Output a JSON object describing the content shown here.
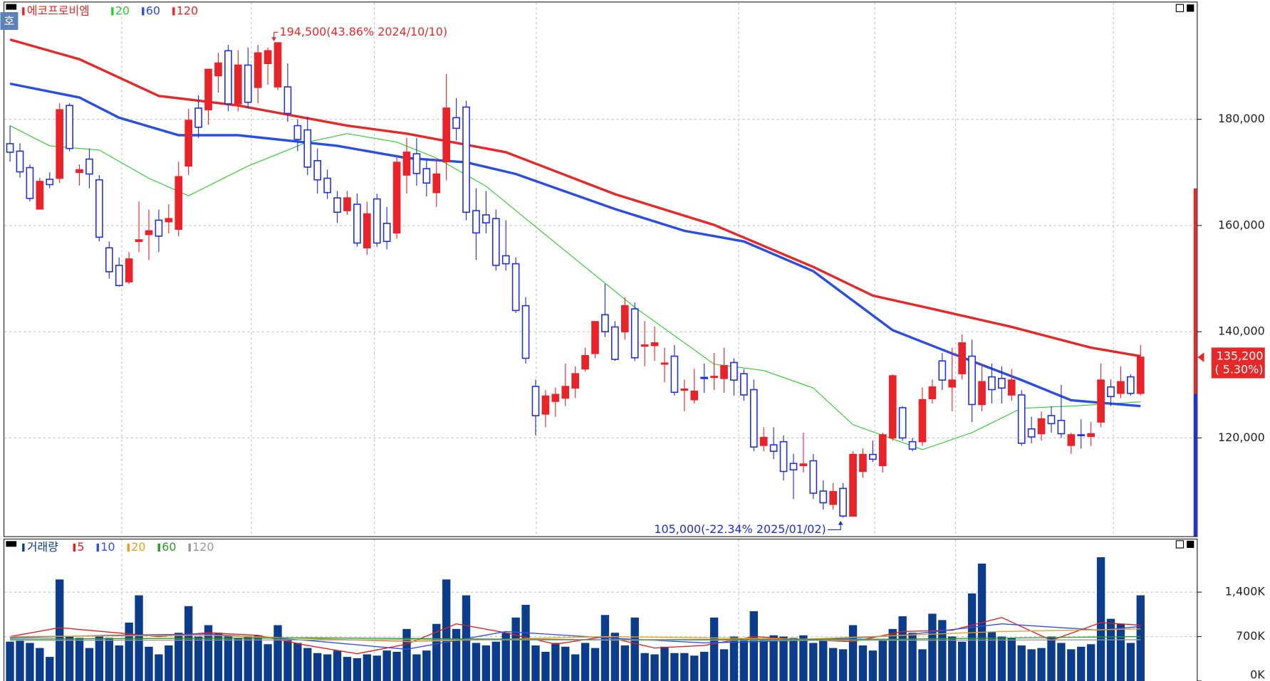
{
  "chart_data": [
    {
      "type": "candlestick",
      "title": "에코프로비엠",
      "icon": "호",
      "open": [
        175400,
        174000,
        170900,
        163100,
        168700,
        168900,
        182600,
        170000,
        172500,
        168600,
        155800,
        152500,
        149400,
        157000,
        158300,
        161000,
        160700,
        159300,
        171200,
        182100,
        181800,
        188200,
        192900,
        182900,
        190200,
        186000,
        190500,
        186100,
        186100,
        178800,
        178000,
        172200,
        168900,
        165200,
        162800,
        164000,
        155800,
        165000,
        160400,
        158600,
        169500,
        173500,
        170700,
        166200,
        172000,
        180300,
        182300,
        162800,
        162000,
        161300,
        154300,
        152800,
        144900,
        129700,
        124500,
        126900,
        127500,
        129400,
        133000,
        135900,
        143200,
        140900,
        140000,
        144300,
        137300,
        137400,
        133900,
        135400,
        129000,
        127200,
        131400,
        131400,
        131200,
        134200,
        132100,
        129100,
        118600,
        118700,
        119300,
        115200,
        114800,
        115700,
        110000,
        107500,
        110500,
        105300,
        113700,
        116900,
        114800,
        120000,
        125700,
        119300,
        119300,
        127400,
        134500,
        129600,
        132100,
        135400,
        126300,
        131500,
        131200,
        128100,
        128100,
        121700,
        120800,
        124200,
        123300,
        118600,
        120600,
        120300,
        123000,
        129600,
        128400,
        131500,
        128400
      ],
      "high": [
        178800,
        175500,
        171500,
        169000,
        170000,
        183000,
        183000,
        171500,
        174500,
        169500,
        157000,
        154000,
        155000,
        164500,
        163000,
        163000,
        164000,
        172000,
        182000,
        184500,
        189500,
        192500,
        194000,
        193000,
        193500,
        194000,
        193500,
        194500,
        190500,
        180000,
        180500,
        174500,
        170500,
        166500,
        166500,
        166000,
        164500,
        166000,
        163500,
        173000,
        176500,
        176500,
        172500,
        172500,
        188500,
        184000,
        183500,
        167000,
        166500,
        163000,
        161000,
        154000,
        146500,
        131000,
        129000,
        129500,
        134000,
        133500,
        137000,
        142000,
        149000,
        142000,
        146500,
        145500,
        142000,
        141000,
        137000,
        137500,
        131000,
        133000,
        134000,
        136000,
        137000,
        135000,
        133000,
        131000,
        122000,
        122000,
        120500,
        117000,
        121000,
        117000,
        112000,
        111500,
        111500,
        117500,
        118000,
        119500,
        121000,
        132000,
        126000,
        120000,
        129500,
        131000,
        136000,
        137000,
        139500,
        138500,
        134000,
        134000,
        133500,
        133000,
        129000,
        124000,
        125000,
        126000,
        130000,
        121000,
        123500,
        123000,
        134000,
        131000,
        133500,
        132000,
        137500
      ],
      "low": [
        172000,
        169000,
        164500,
        163000,
        167000,
        168000,
        174000,
        167500,
        167000,
        157000,
        150000,
        148500,
        149000,
        155000,
        153500,
        155000,
        158500,
        158000,
        169500,
        176500,
        179000,
        185000,
        181500,
        181500,
        182000,
        183000,
        186500,
        185500,
        179500,
        174000,
        169500,
        166000,
        165000,
        160500,
        162000,
        156000,
        154500,
        156000,
        155500,
        157500,
        166000,
        167500,
        165500,
        163500,
        168500,
        176000,
        161000,
        153500,
        158500,
        151500,
        151500,
        143500,
        134000,
        120500,
        122000,
        124000,
        126000,
        127500,
        132500,
        135000,
        139000,
        134500,
        138500,
        134500,
        133500,
        134500,
        130500,
        128000,
        125000,
        126500,
        128500,
        129000,
        128500,
        128000,
        127000,
        117500,
        117500,
        116000,
        112000,
        108500,
        113500,
        108500,
        106500,
        106500,
        105000,
        105500,
        112500,
        115500,
        113500,
        119500,
        119500,
        117500,
        118500,
        126500,
        129000,
        125000,
        131000,
        123000,
        125000,
        126500,
        126500,
        127000,
        118500,
        119000,
        119500,
        121000,
        120000,
        117000,
        118000,
        118500,
        122000,
        126000,
        127500,
        128000,
        128000
      ],
      "close": [
        173800,
        170100,
        165100,
        168300,
        167700,
        181800,
        174500,
        170500,
        169700,
        157800,
        151300,
        148700,
        153700,
        157300,
        159000,
        158000,
        161300,
        169200,
        179800,
        178500,
        189400,
        190600,
        182900,
        190200,
        183200,
        192500,
        192900,
        194400,
        181100,
        176200,
        171000,
        168600,
        166200,
        162500,
        165200,
        156700,
        162200,
        156700,
        157000,
        171900,
        173800,
        169800,
        168000,
        169700,
        182100,
        178300,
        162500,
        158600,
        160500,
        152500,
        152800,
        144000,
        135000,
        124200,
        127900,
        128200,
        129700,
        132100,
        135500,
        141900,
        140000,
        134800,
        144900,
        135100,
        137500,
        137900,
        134100,
        128600,
        129200,
        128800,
        131200,
        131600,
        133600,
        130900,
        128100,
        118300,
        120100,
        117500,
        113700,
        114000,
        115100,
        109600,
        107800,
        109900,
        105300,
        116900,
        116900,
        116000,
        120600,
        131700,
        120000,
        117900,
        127200,
        129600,
        130900,
        130900,
        137900,
        126300,
        130600,
        129100,
        129400,
        130900,
        119000,
        120200,
        123600,
        122700,
        120800,
        120600,
        120500,
        120800,
        130900,
        127800,
        130600,
        128400,
        135200
      ],
      "up_color": "#e8242a",
      "down_color": "#1f2fdc",
      "series": [
        {
          "name": "20",
          "color": "#2ecc2e",
          "width": 1,
          "x": [
            0,
            4,
            9,
            14,
            18,
            24,
            30,
            34,
            39,
            43,
            48,
            56,
            63,
            71,
            76,
            81,
            85,
            92,
            97,
            102,
            107,
            114
          ],
          "values": [
            178800,
            175000,
            174200,
            168900,
            165600,
            171200,
            175700,
            177300,
            175700,
            172700,
            167400,
            155200,
            144600,
            133900,
            132700,
            129400,
            122500,
            117800,
            121000,
            125600,
            126000,
            126800
          ]
        },
        {
          "name": "60",
          "color": "#2b4ee0",
          "width": 3,
          "x": [
            0,
            7,
            11,
            17,
            23,
            33,
            40,
            46,
            51,
            61,
            68,
            74,
            81,
            89,
            95,
            102,
            107,
            114
          ],
          "values": [
            186700,
            184100,
            180300,
            177000,
            177000,
            175000,
            172700,
            171900,
            169700,
            163100,
            159000,
            157000,
            151400,
            140300,
            135900,
            130900,
            127100,
            126000
          ]
        },
        {
          "name": "120",
          "color": "#e52828",
          "width": 3,
          "x": [
            0,
            7,
            15,
            23,
            34,
            40,
            50,
            61,
            71,
            81,
            87,
            93,
            101,
            109,
            114
          ],
          "values": [
            195000,
            191300,
            184400,
            182600,
            178800,
            177300,
            173800,
            165900,
            160100,
            152200,
            146800,
            144300,
            140900,
            137000,
            135400
          ]
        }
      ],
      "ylim": [
        101500,
        202000
      ],
      "yticks": [
        {
          "value": 120000,
          "label": "120,000"
        },
        {
          "value": 140000,
          "label": "140,000"
        },
        {
          "value": 160000,
          "label": "160,000"
        },
        {
          "value": 180000,
          "label": "180,000"
        }
      ],
      "grid": true,
      "annotations": [
        "194,500(43.86% 2024/10/10)",
        "105,000(-22.34% 2025/01/02)"
      ],
      "last_label": "135,200",
      "last_change": "( 5.30%)"
    },
    {
      "type": "bar",
      "title": "거래량",
      "color": "#0b3d8c",
      "values": [
        620,
        640,
        600,
        520,
        380,
        1600,
        700,
        680,
        520,
        700,
        680,
        560,
        920,
        1350,
        540,
        420,
        560,
        760,
        1180,
        700,
        880,
        760,
        720,
        680,
        710,
        720,
        580,
        880,
        640,
        600,
        520,
        440,
        420,
        480,
        380,
        360,
        420,
        400,
        480,
        460,
        820,
        420,
        480,
        900,
        1600,
        820,
        1350,
        600,
        560,
        620,
        760,
        1000,
        1200,
        560,
        460,
        600,
        540,
        420,
        600,
        520,
        1040,
        760,
        560,
        1000,
        440,
        420,
        540,
        440,
        440,
        400,
        460,
        1000,
        500,
        700,
        660,
        1100,
        660,
        720,
        700,
        680,
        720,
        600,
        640,
        520,
        500,
        880,
        560,
        480,
        640,
        820,
        1020,
        760,
        500,
        1060,
        960,
        700,
        620,
        1380,
        1850,
        780,
        700,
        680,
        560,
        500,
        520,
        700,
        600,
        500,
        540,
        580,
        1950,
        980,
        900,
        600,
        1350
      ],
      "series": [
        {
          "name": "5",
          "color": "#e02020",
          "x": [
            0,
            5,
            10,
            15,
            20,
            25,
            30,
            35,
            40,
            45,
            50,
            55,
            60,
            65,
            70,
            75,
            80,
            85,
            90,
            95,
            100,
            105,
            110,
            114
          ],
          "values": [
            700,
            840,
            770,
            700,
            760,
            720,
            560,
            430,
            580,
            900,
            760,
            580,
            700,
            520,
            560,
            700,
            650,
            620,
            780,
            800,
            1000,
            640,
            920,
            880
          ]
        },
        {
          "name": "10",
          "color": "#3050e8",
          "x": [
            0,
            10,
            20,
            30,
            40,
            50,
            60,
            70,
            80,
            90,
            100,
            110,
            114
          ],
          "values": [
            680,
            720,
            740,
            640,
            500,
            780,
            680,
            600,
            640,
            720,
            900,
            800,
            860
          ]
        },
        {
          "name": "20",
          "color": "#e8a020",
          "x": [
            0,
            20,
            40,
            60,
            80,
            100,
            114
          ],
          "values": [
            700,
            720,
            620,
            700,
            660,
            780,
            820
          ]
        },
        {
          "name": "60",
          "color": "#2a9a2a",
          "x": [
            0,
            30,
            60,
            90,
            114
          ],
          "values": [
            660,
            680,
            650,
            660,
            700
          ]
        },
        {
          "name": "120",
          "color": "#999999",
          "x": [
            0,
            40,
            80,
            114
          ],
          "values": [
            640,
            650,
            640,
            650
          ]
        }
      ],
      "ylim": [
        0,
        2230
      ],
      "yticks": [
        {
          "value": 0,
          "label": "0K"
        },
        {
          "value": 700,
          "label": "700K"
        },
        {
          "value": 1400,
          "label": "1,400K"
        }
      ],
      "grid": true
    }
  ]
}
